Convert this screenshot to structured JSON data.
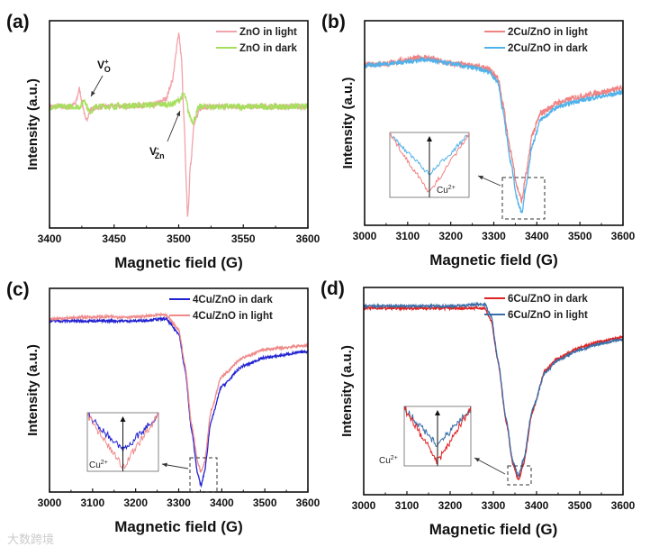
{
  "watermark": "大数跨境",
  "chart_data": [
    {
      "panel": "(a)",
      "type": "line",
      "xlabel": "Magnetic field (G)",
      "ylabel": "Intensity (a.u.)",
      "xlim": [
        3400,
        3600
      ],
      "xticks": [
        3400,
        3450,
        3500,
        3550,
        3600
      ],
      "ylim": [
        -2.4,
        1.7
      ],
      "legend": "top-right",
      "series": [
        {
          "name": "ZnO in light",
          "color": "#f2a2aa",
          "x": [
            3400,
            3415,
            3420,
            3423,
            3426,
            3428,
            3432,
            3440,
            3480,
            3490,
            3495,
            3500,
            3502,
            3504,
            3506,
            3507,
            3509,
            3512,
            3518,
            3530,
            3600
          ],
          "y": [
            0,
            0,
            0.05,
            0.35,
            0.0,
            -0.28,
            -0.05,
            0,
            0.03,
            0.15,
            0.5,
            1.45,
            1.0,
            -0.2,
            -1.6,
            -2.2,
            -1.2,
            -0.3,
            0,
            0,
            0
          ]
        },
        {
          "name": "ZnO in dark",
          "color": "#a6df5c",
          "x": [
            3400,
            3424,
            3427,
            3429,
            3431,
            3436,
            3495,
            3500,
            3504,
            3506,
            3508,
            3511,
            3516,
            3600
          ],
          "y": [
            0,
            0,
            0.15,
            0,
            -0.1,
            0,
            0.05,
            0.12,
            0.25,
            0.1,
            -0.15,
            -0.3,
            0,
            0
          ]
        }
      ],
      "annotations": [
        {
          "base": "V",
          "sub": "O",
          "sup": "+"
        },
        {
          "base": "V",
          "sub": "Zn",
          "sup": "-"
        }
      ]
    },
    {
      "panel": "(b)",
      "type": "line",
      "xlabel": "Magnetic field (G)",
      "ylabel": "Intensity (a.u.)",
      "xlim": [
        3000,
        3600
      ],
      "xticks": [
        3000,
        3100,
        3200,
        3300,
        3400,
        3500,
        3600
      ],
      "ylim": [
        0,
        1
      ],
      "legend": "top-right",
      "series": [
        {
          "name": "2Cu/ZnO in light",
          "color": "#f08282",
          "x": [
            3000,
            3050,
            3100,
            3140,
            3200,
            3250,
            3290,
            3310,
            3320,
            3340,
            3355,
            3365,
            3375,
            3390,
            3410,
            3450,
            3500,
            3550,
            3600
          ],
          "y": [
            0.79,
            0.79,
            0.81,
            0.82,
            0.79,
            0.78,
            0.76,
            0.72,
            0.6,
            0.35,
            0.18,
            0.12,
            0.25,
            0.45,
            0.55,
            0.6,
            0.63,
            0.65,
            0.67
          ]
        },
        {
          "name": "2Cu/ZnO in dark",
          "color": "#4fb2ea",
          "x": [
            3000,
            3050,
            3100,
            3140,
            3200,
            3250,
            3290,
            3310,
            3320,
            3340,
            3355,
            3365,
            3375,
            3390,
            3410,
            3450,
            3500,
            3550,
            3600
          ],
          "y": [
            0.78,
            0.79,
            0.8,
            0.81,
            0.79,
            0.77,
            0.75,
            0.7,
            0.57,
            0.3,
            0.12,
            0.06,
            0.2,
            0.4,
            0.52,
            0.58,
            0.61,
            0.63,
            0.65
          ]
        }
      ],
      "inset_label": {
        "base": "Cu",
        "sup": "2+"
      }
    },
    {
      "panel": "(c)",
      "type": "line",
      "xlabel": "Magnetic field (G)",
      "ylabel": "Intensity (a.u.)",
      "xlim": [
        3000,
        3600
      ],
      "xticks": [
        3000,
        3100,
        3200,
        3300,
        3400,
        3500,
        3600
      ],
      "ylim": [
        0,
        1
      ],
      "legend": "top-right",
      "series": [
        {
          "name": "4Cu/ZnO in dark",
          "color": "#2222d2",
          "x": [
            3000,
            3100,
            3200,
            3270,
            3300,
            3315,
            3330,
            3345,
            3352,
            3360,
            3375,
            3400,
            3450,
            3500,
            3600
          ],
          "y": [
            0.84,
            0.84,
            0.84,
            0.85,
            0.78,
            0.6,
            0.3,
            0.08,
            0.03,
            0.1,
            0.35,
            0.52,
            0.62,
            0.66,
            0.69
          ]
        },
        {
          "name": "4Cu/ZnO in light",
          "color": "#f08a8a",
          "x": [
            3000,
            3100,
            3200,
            3270,
            3300,
            3315,
            3330,
            3345,
            3352,
            3360,
            3375,
            3400,
            3450,
            3500,
            3600
          ],
          "y": [
            0.85,
            0.86,
            0.86,
            0.87,
            0.8,
            0.62,
            0.33,
            0.14,
            0.1,
            0.15,
            0.4,
            0.57,
            0.66,
            0.7,
            0.72
          ]
        }
      ],
      "inset_label": {
        "base": "Cu",
        "sup": "2+"
      }
    },
    {
      "panel": "(d)",
      "type": "line",
      "xlabel": "Magnetic field (G)",
      "ylabel": "Intensity (a.u.)",
      "xlim": [
        3000,
        3600
      ],
      "xticks": [
        3000,
        3100,
        3200,
        3300,
        3400,
        3500,
        3600
      ],
      "ylim": [
        0,
        1
      ],
      "legend": "top-right",
      "series": [
        {
          "name": "6Cu/ZnO in dark",
          "color": "#e02222",
          "x": [
            3000,
            3100,
            3200,
            3280,
            3295,
            3310,
            3330,
            3345,
            3358,
            3370,
            3390,
            3420,
            3450,
            3500,
            3550,
            3600
          ],
          "y": [
            0.9,
            0.9,
            0.9,
            0.9,
            0.84,
            0.65,
            0.35,
            0.15,
            0.07,
            0.15,
            0.4,
            0.6,
            0.66,
            0.71,
            0.74,
            0.76
          ]
        },
        {
          "name": "6Cu/ZnO in light",
          "color": "#3a6ea8",
          "x": [
            3000,
            3100,
            3200,
            3280,
            3295,
            3310,
            3330,
            3345,
            3358,
            3370,
            3390,
            3420,
            3450,
            3500,
            3550,
            3600
          ],
          "y": [
            0.91,
            0.91,
            0.91,
            0.92,
            0.86,
            0.66,
            0.36,
            0.16,
            0.09,
            0.17,
            0.41,
            0.59,
            0.65,
            0.7,
            0.73,
            0.75
          ]
        }
      ],
      "inset_label": {
        "base": "Cu",
        "sup": "2+"
      }
    }
  ]
}
